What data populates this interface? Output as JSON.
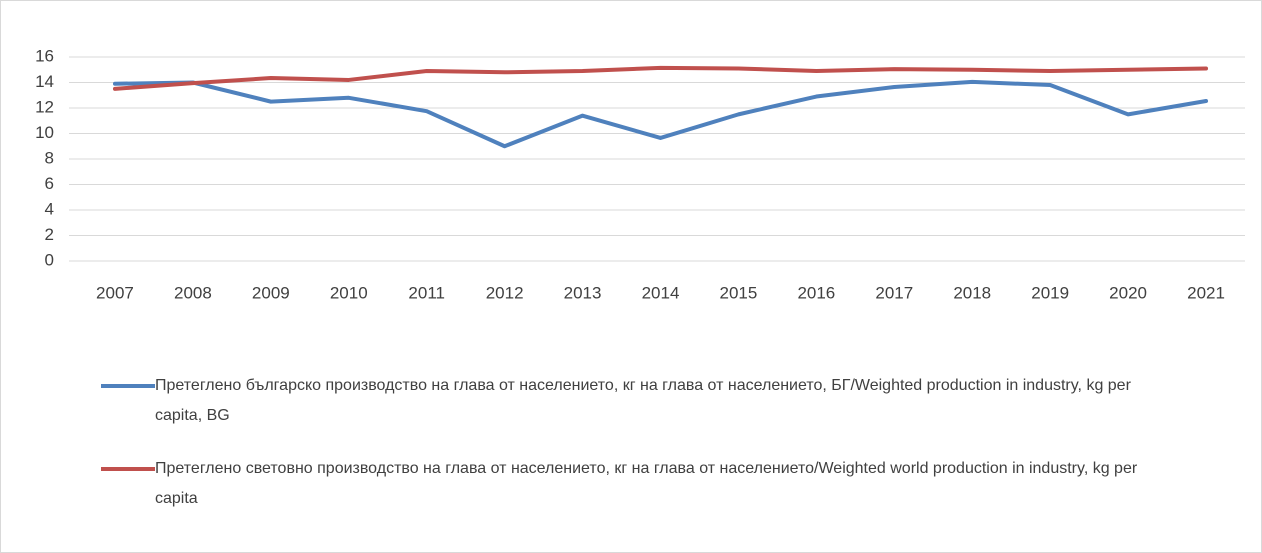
{
  "chart_data": {
    "type": "line",
    "categories": [
      "2007",
      "2008",
      "2009",
      "2010",
      "2011",
      "2012",
      "2013",
      "2014",
      "2015",
      "2016",
      "2017",
      "2018",
      "2019",
      "2020",
      "2021"
    ],
    "series": [
      {
        "name": "Претеглено българско производство на глава от населението, кг на глава от населението, БГ/Weighted production in industry, kg per capita, BG",
        "color": "#4f81bd",
        "values": [
          13.9,
          14.0,
          12.5,
          12.8,
          11.75,
          9.0,
          11.4,
          9.65,
          11.5,
          12.9,
          13.65,
          14.05,
          13.8,
          11.5,
          12.55
        ]
      },
      {
        "name": "Претеглено световно производство на глава от населението, кг на глава от населението/Weighted world production in industry, kg per capita",
        "color": "#c0504d",
        "values": [
          13.5,
          13.95,
          14.35,
          14.2,
          14.9,
          14.8,
          14.9,
          15.15,
          15.1,
          14.9,
          15.05,
          15.0,
          14.9,
          15.0,
          15.1
        ]
      }
    ],
    "ylim": [
      0,
      16
    ],
    "yticks": [
      0,
      2,
      4,
      6,
      8,
      10,
      12,
      14,
      16
    ],
    "grid": true,
    "legend": "bottom"
  }
}
